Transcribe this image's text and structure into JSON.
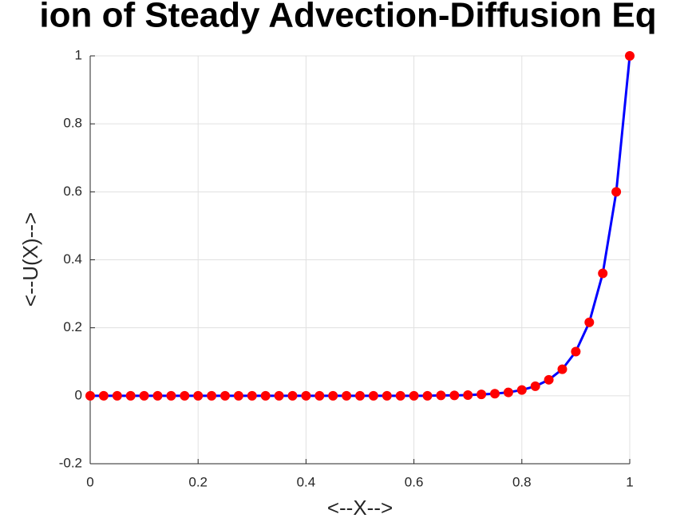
{
  "chart_data": {
    "type": "line",
    "title": "ion of Steady Advection-Diffusion Eq",
    "x_label": "<--X-->",
    "y_label": "<--U(X)-->",
    "x": [
      0,
      0.025,
      0.05,
      0.075,
      0.1,
      0.125,
      0.15,
      0.175,
      0.2,
      0.225,
      0.25,
      0.275,
      0.3,
      0.325,
      0.35,
      0.375,
      0.4,
      0.425,
      0.45,
      0.475,
      0.5,
      0.525,
      0.55,
      0.575,
      0.6,
      0.625,
      0.65,
      0.675,
      0.7,
      0.725,
      0.75,
      0.775,
      0.8,
      0.825,
      0.85,
      0.875,
      0.9,
      0.925,
      0.95,
      0.975,
      1
    ],
    "series": [
      {
        "color": "#0000ff",
        "marker_color": "#ff0000",
        "values": [
          0,
          0,
          0,
          0,
          0,
          0,
          0,
          0,
          0,
          0,
          0,
          0,
          0,
          0,
          0,
          0,
          0,
          0,
          0,
          0,
          0,
          0,
          0,
          0,
          0,
          0,
          0.001,
          0.001,
          0.002,
          0.004,
          0.006,
          0.01,
          0.017,
          0.028,
          0.047,
          0.078,
          0.13,
          0.216,
          0.36,
          0.6,
          1
        ]
      }
    ],
    "xlim": [
      0,
      1
    ],
    "xticks": [
      0,
      0.2,
      0.4,
      0.6,
      0.8,
      1
    ],
    "ylim": [
      -0.2,
      1
    ],
    "yticks": [
      -0.2,
      0,
      0.2,
      0.4,
      0.6,
      0.8,
      1
    ],
    "grid": true
  }
}
